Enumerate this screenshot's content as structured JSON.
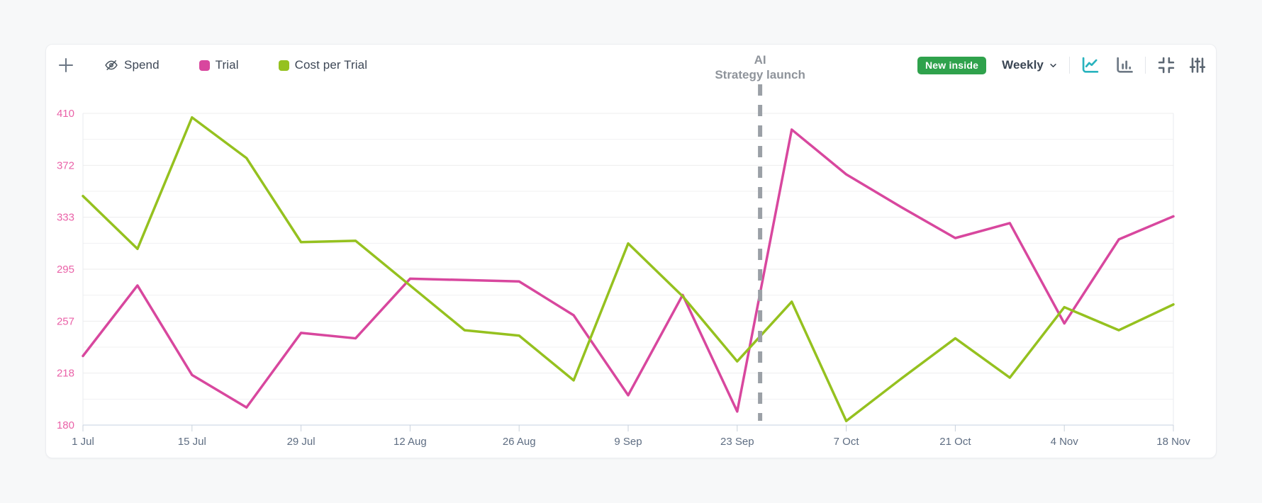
{
  "toolbar": {
    "add_button": "+",
    "legend": [
      {
        "label": "Spend",
        "hidden": true,
        "color": null
      },
      {
        "label": "Trial",
        "hidden": false,
        "color": "#D8479E"
      },
      {
        "label": "Cost per Trial",
        "hidden": false,
        "color": "#95C11F"
      }
    ],
    "badge_label": "New inside",
    "badge_color": "#2FA24C",
    "period_label": "Weekly",
    "active_icon_color": "#29B3BE",
    "icon_color": "#6E7985"
  },
  "annotation": {
    "line1": "AI",
    "line2": "Strategy launch"
  },
  "chart_data": {
    "type": "line",
    "x": [
      "1 Jul",
      "8 Jul",
      "15 Jul",
      "22 Jul",
      "29 Jul",
      "5 Aug",
      "12 Aug",
      "19 Aug",
      "26 Aug",
      "2 Sep",
      "9 Sep",
      "16 Sep",
      "23 Sep",
      "30 Sep",
      "7 Oct",
      "14 Oct",
      "21 Oct",
      "28 Oct",
      "4 Nov",
      "11 Nov",
      "18 Nov"
    ],
    "x_tick_labels": [
      "1 Jul",
      "15 Jul",
      "29 Jul",
      "12 Aug",
      "26 Aug",
      "9 Sep",
      "23 Sep",
      "7 Oct",
      "21 Oct",
      "4 Nov",
      "18 Nov"
    ],
    "y_ticks": [
      180,
      218,
      257,
      295,
      333,
      372,
      410
    ],
    "ylim": [
      180,
      410
    ],
    "grid": "horizontal-with-minor-lines",
    "legend_position": "top",
    "series": [
      {
        "name": "Trial",
        "color": "#D8479E",
        "values": [
          231,
          283,
          217,
          193,
          248,
          244,
          288,
          287,
          286,
          261,
          202,
          276,
          190,
          398,
          365,
          341,
          318,
          329,
          255,
          317,
          334
        ]
      },
      {
        "name": "Cost per Trial",
        "color": "#95C11F",
        "values": [
          349,
          310,
          407,
          377,
          315,
          316,
          283,
          250,
          246,
          213,
          314,
          275,
          227,
          271,
          183,
          214,
          244,
          215,
          267,
          250,
          269
        ]
      }
    ],
    "hidden_series": [
      "Spend"
    ],
    "annotation": {
      "label": "AI Strategy launch",
      "x_position": 12.42,
      "line_color": "#9BA0A6"
    }
  }
}
